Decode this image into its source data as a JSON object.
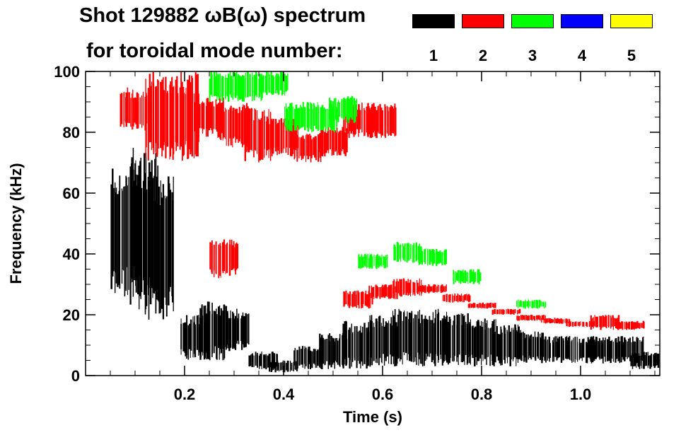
{
  "chart_data": {
    "type": "spectrogram",
    "title_line1": "Shot 129882 ωB(ω) spectrum",
    "title_line2": "for toroidal mode number:",
    "xlabel": "Time (s)",
    "ylabel": "Frequency (kHz)",
    "xlim": [
      0.0,
      1.16
    ],
    "ylim": [
      0,
      100
    ],
    "x_ticks": [
      0.2,
      0.4,
      0.6,
      0.8,
      1.0
    ],
    "x_tick_labels": [
      "0.2",
      "0.4",
      "0.6",
      "0.8",
      "1.0"
    ],
    "y_ticks": [
      0,
      20,
      40,
      60,
      80,
      100
    ],
    "y_tick_labels": [
      "0",
      "20",
      "40",
      "60",
      "80",
      "100"
    ],
    "legend": [
      {
        "label": "1",
        "color": "#000000"
      },
      {
        "label": "2",
        "color": "#ff0000"
      },
      {
        "label": "3",
        "color": "#00ff00"
      },
      {
        "label": "4",
        "color": "#0000ff"
      },
      {
        "label": "5",
        "color": "#ffff00"
      }
    ],
    "series": [
      {
        "name": "n=1",
        "color": "#000000",
        "bands": [
          {
            "t": 0.08,
            "f_low": 25,
            "f_high": 70
          },
          {
            "t": 0.12,
            "f_low": 20,
            "f_high": 75
          },
          {
            "t": 0.15,
            "f_low": 18,
            "f_high": 66
          },
          {
            "t": 0.22,
            "f_low": 5,
            "f_high": 20
          },
          {
            "t": 0.26,
            "f_low": 5,
            "f_high": 25
          },
          {
            "t": 0.3,
            "f_low": 8,
            "f_high": 22
          },
          {
            "t": 0.36,
            "f_low": 2,
            "f_high": 8
          },
          {
            "t": 0.4,
            "f_low": 1,
            "f_high": 5
          },
          {
            "t": 0.45,
            "f_low": 2,
            "f_high": 10
          },
          {
            "t": 0.5,
            "f_low": 2,
            "f_high": 14
          },
          {
            "t": 0.55,
            "f_low": 2,
            "f_high": 18
          },
          {
            "t": 0.6,
            "f_low": 3,
            "f_high": 20
          },
          {
            "t": 0.65,
            "f_low": 3,
            "f_high": 22
          },
          {
            "t": 0.7,
            "f_low": 3,
            "f_high": 22
          },
          {
            "t": 0.75,
            "f_low": 3,
            "f_high": 21
          },
          {
            "t": 0.8,
            "f_low": 3,
            "f_high": 19
          },
          {
            "t": 0.85,
            "f_low": 3,
            "f_high": 17
          },
          {
            "t": 0.9,
            "f_low": 4,
            "f_high": 15
          },
          {
            "t": 0.95,
            "f_low": 4,
            "f_high": 13
          },
          {
            "t": 1.0,
            "f_low": 4,
            "f_high": 13
          },
          {
            "t": 1.05,
            "f_low": 4,
            "f_high": 13
          },
          {
            "t": 1.1,
            "f_low": 4,
            "f_high": 13
          },
          {
            "t": 1.13,
            "f_low": 2,
            "f_high": 8
          }
        ]
      },
      {
        "name": "n=2",
        "color": "#ff0000",
        "bands": [
          {
            "t": 0.1,
            "f_low": 80,
            "f_high": 95
          },
          {
            "t": 0.15,
            "f_low": 70,
            "f_high": 100
          },
          {
            "t": 0.2,
            "f_low": 70,
            "f_high": 100
          },
          {
            "t": 0.25,
            "f_low": 78,
            "f_high": 92
          },
          {
            "t": 0.28,
            "f_low": 32,
            "f_high": 45
          },
          {
            "t": 0.3,
            "f_low": 75,
            "f_high": 90
          },
          {
            "t": 0.35,
            "f_low": 70,
            "f_high": 88
          },
          {
            "t": 0.4,
            "f_low": 72,
            "f_high": 85
          },
          {
            "t": 0.45,
            "f_low": 70,
            "f_high": 80
          },
          {
            "t": 0.5,
            "f_low": 72,
            "f_high": 82
          },
          {
            "t": 0.55,
            "f_low": 78,
            "f_high": 90
          },
          {
            "t": 0.6,
            "f_low": 78,
            "f_high": 90
          },
          {
            "t": 0.55,
            "f_low": 22,
            "f_high": 28
          },
          {
            "t": 0.6,
            "f_low": 25,
            "f_high": 30
          },
          {
            "t": 0.65,
            "f_low": 26,
            "f_high": 32
          },
          {
            "t": 0.7,
            "f_low": 27,
            "f_high": 30
          },
          {
            "t": 0.75,
            "f_low": 24,
            "f_high": 27
          },
          {
            "t": 0.8,
            "f_low": 22,
            "f_high": 24
          },
          {
            "t": 0.85,
            "f_low": 20,
            "f_high": 22
          },
          {
            "t": 0.9,
            "f_low": 18,
            "f_high": 20
          },
          {
            "t": 0.95,
            "f_low": 17,
            "f_high": 19
          },
          {
            "t": 1.0,
            "f_low": 16,
            "f_high": 18
          },
          {
            "t": 1.05,
            "f_low": 15,
            "f_high": 20
          },
          {
            "t": 1.1,
            "f_low": 15,
            "f_high": 18
          }
        ]
      },
      {
        "name": "n=3",
        "color": "#00ff00",
        "bands": [
          {
            "t": 0.28,
            "f_low": 90,
            "f_high": 100
          },
          {
            "t": 0.33,
            "f_low": 90,
            "f_high": 100
          },
          {
            "t": 0.38,
            "f_low": 92,
            "f_high": 100
          },
          {
            "t": 0.43,
            "f_low": 80,
            "f_high": 90
          },
          {
            "t": 0.48,
            "f_low": 80,
            "f_high": 90
          },
          {
            "t": 0.52,
            "f_low": 83,
            "f_high": 92
          },
          {
            "t": 0.58,
            "f_low": 35,
            "f_high": 40
          },
          {
            "t": 0.65,
            "f_low": 37,
            "f_high": 44
          },
          {
            "t": 0.7,
            "f_low": 36,
            "f_high": 42
          },
          {
            "t": 0.77,
            "f_low": 30,
            "f_high": 35
          },
          {
            "t": 0.9,
            "f_low": 22,
            "f_high": 25
          }
        ]
      },
      {
        "name": "n=4",
        "color": "#0000ff",
        "bands": []
      },
      {
        "name": "n=5",
        "color": "#ffff00",
        "bands": []
      }
    ]
  }
}
